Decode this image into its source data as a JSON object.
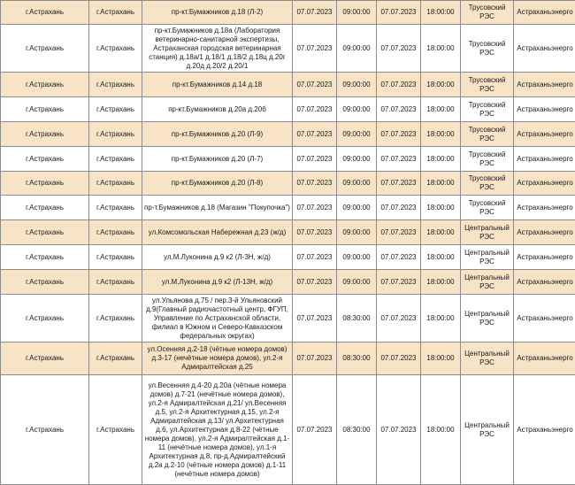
{
  "rows": [
    {
      "region": "г.Астрахань",
      "city": "г.Астрахань",
      "address": "пр-кт.Бумажников д.18 (Л-2)",
      "start_date": "07.07.2023",
      "start_time": "09:00:00",
      "end_date": "07.07.2023",
      "end_time": "18:00:00",
      "res": "Трусовский РЭС",
      "org": "Астраханьэнерго"
    },
    {
      "region": "г.Астрахань",
      "city": "г.Астрахань",
      "address": "пр-кт.Бумажников д.18а (Лаборатория ветеринарно-санитарной экспертизы, Астраханская городская ветеринарная станция) д.18а/1 д.18/1 д.18/2 д.18ц д.20г д.20д д.20/2 д.20/1",
      "start_date": "07.07.2023",
      "start_time": "09:00:00",
      "end_date": "07.07.2023",
      "end_time": "18:00:00",
      "res": "Трусовский РЭС",
      "org": "Астраханьэнерго"
    },
    {
      "region": "г.Астрахань",
      "city": "г.Астрахань",
      "address": "пр-кт.Бумажников д.14 д.18",
      "start_date": "07.07.2023",
      "start_time": "09:00:00",
      "end_date": "07.07.2023",
      "end_time": "18:00:00",
      "res": "Трусовский РЭС",
      "org": "Астраханьэнерго"
    },
    {
      "region": "г.Астрахань",
      "city": "г.Астрахань",
      "address": "пр-кт.Бумажников д.20а д.20б",
      "start_date": "07.07.2023",
      "start_time": "09:00:00",
      "end_date": "07.07.2023",
      "end_time": "18:00:00",
      "res": "Трусовский РЭС",
      "org": "Астраханьэнерго"
    },
    {
      "region": "г.Астрахань",
      "city": "г.Астрахань",
      "address": "пр-кт.Бумажников д.20 (Л-9)",
      "start_date": "07.07.2023",
      "start_time": "09:00:00",
      "end_date": "07.07.2023",
      "end_time": "18:00:00",
      "res": "Трусовский РЭС",
      "org": "Астраханьэнерго"
    },
    {
      "region": "г.Астрахань",
      "city": "г.Астрахань",
      "address": "пр-кт.Бумажников д.20 (Л-7)",
      "start_date": "07.07.2023",
      "start_time": "09:00:00",
      "end_date": "07.07.2023",
      "end_time": "18:00:00",
      "res": "Трусовский РЭС",
      "org": "Астраханьэнерго"
    },
    {
      "region": "г.Астрахань",
      "city": "г.Астрахань",
      "address": "пр-кт.Бумажников д.20 (Л-8)",
      "start_date": "07.07.2023",
      "start_time": "09:00:00",
      "end_date": "07.07.2023",
      "end_time": "18:00:00",
      "res": "Трусовский РЭС",
      "org": "Астраханьэнерго"
    },
    {
      "region": "г.Астрахань",
      "city": "г.Астрахань",
      "address": "пр-т.Бумажников д.18 (Магазин \"Покупочка\")",
      "start_date": "07.07.2023",
      "start_time": "09:00:00",
      "end_date": "07.07.2023",
      "end_time": "18:00:00",
      "res": "Трусовский РЭС",
      "org": "Астраханьэнерго"
    },
    {
      "region": "г.Астрахань",
      "city": "г.Астрахань",
      "address": "ул.Комсомольская Набережная д.23 (ж/д)",
      "start_date": "07.07.2023",
      "start_time": "09:00:00",
      "end_date": "07.07.2023",
      "end_time": "18:00:00",
      "res": "Центральный РЭС",
      "org": "Астраханьэнерго"
    },
    {
      "region": "г.Астрахань",
      "city": "г.Астрахань",
      "address": "ул.М.Луконина д.9 к2 (Л-3Н, ж/д)",
      "start_date": "07.07.2023",
      "start_time": "09:00:00",
      "end_date": "07.07.2023",
      "end_time": "18:00:00",
      "res": "Центральный РЭС",
      "org": "Астраханьэнерго"
    },
    {
      "region": "г.Астрахань",
      "city": "г.Астрахань",
      "address": "ул.М.Луконина д.9 к2 (Л-13Н, ж/д)",
      "start_date": "07.07.2023",
      "start_time": "09:00:00",
      "end_date": "07.07.2023",
      "end_time": "18:00:00",
      "res": "Центральный РЭС",
      "org": "Астраханьэнерго"
    },
    {
      "region": "г.Астрахань",
      "city": "г.Астрахань",
      "address": "ул.Ульянова д.75 / пер.3-й Ульяновский д.9(Главный радиочастотный центр, ФГУП, Управление по Астраханской области, филиал в Южном и Северо-Кавказском федеральных округах)",
      "start_date": "07.07.2023",
      "start_time": "08:30:00",
      "end_date": "07.07.2023",
      "end_time": "18:00:00",
      "res": "Центральный РЭС",
      "org": "Астраханьэнерго"
    },
    {
      "region": "г.Астрахань",
      "city": "г.Астрахань",
      "address": "ул.Осенняя д.2-18 (чётные номера домов) д.3-17 (нечётные номера домов), ул.2-я Адмиралтейская д.25",
      "start_date": "07.07.2023",
      "start_time": "08:30:00",
      "end_date": "07.07.2023",
      "end_time": "18:00:00",
      "res": "Центральный РЭС",
      "org": "Астраханьэнерго"
    },
    {
      "region": "г.Астрахань",
      "city": "г.Астрахань",
      "address": "ул.Весенняя д.4-20 д.20а (чётные номера домов) д.7-21 (нечётные номера домов), ул.2-я Адмиралтейская д.21/ ул.Весенняя д.5, ул.2-я Архитектурная д.15, ул.2-я Адмиралтейская д.13/ ул.Архитектурная д.6, ул.Архитектурная д.8-22 (чётные номера домов), ул.2-я Адмиралтейская д.1-11 (нечётные номера домов), ул.1-я Архитектурная д.8, пр-д.Адмиралтейский д.2а д.2-10 (чётные номера домов) д.1-11 (нечётные номера домов)",
      "start_date": "07.07.2023",
      "start_time": "08:30:00",
      "end_date": "07.07.2023",
      "end_time": "18:00:00",
      "res": "Центральный РЭС",
      "org": "Астраханьэнерго"
    }
  ]
}
